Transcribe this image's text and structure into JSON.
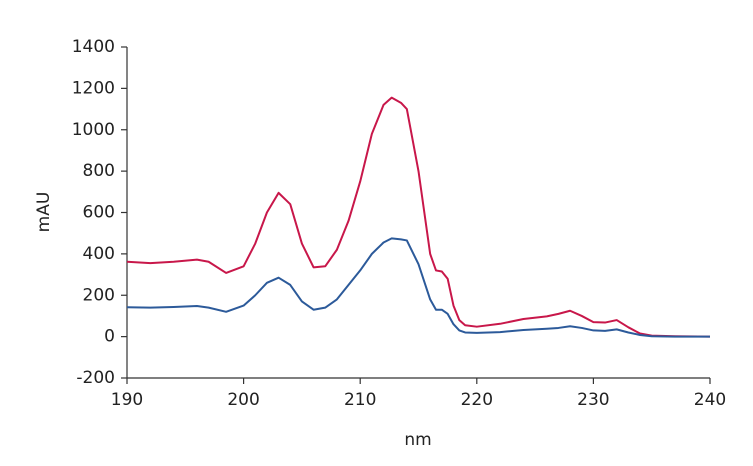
{
  "chart_data": {
    "type": "line",
    "x": [
      190,
      192,
      194,
      196,
      197,
      198.5,
      200,
      201,
      202,
      203,
      204,
      205,
      206,
      207,
      208,
      209,
      210,
      211,
      212,
      212.7,
      213.5,
      214,
      215,
      216,
      216.5,
      217,
      217.5,
      218,
      218.5,
      219,
      220,
      222,
      224,
      226,
      227,
      228,
      229,
      230,
      231,
      232,
      233,
      234,
      235,
      237,
      240
    ],
    "series": [
      {
        "color": "#c8174a",
        "values": [
          362,
          355,
          362,
          372,
          362,
          308,
          340,
          450,
          600,
          695,
          640,
          450,
          335,
          340,
          420,
          560,
          750,
          980,
          1120,
          1155,
          1130,
          1100,
          800,
          400,
          320,
          315,
          280,
          150,
          80,
          55,
          48,
          62,
          85,
          98,
          110,
          125,
          100,
          70,
          68,
          80,
          45,
          15,
          5,
          2,
          0
        ]
      },
      {
        "color": "#2c5a9a",
        "values": [
          142,
          140,
          143,
          148,
          140,
          120,
          150,
          200,
          260,
          285,
          250,
          170,
          130,
          140,
          180,
          250,
          320,
          400,
          455,
          475,
          470,
          465,
          350,
          180,
          130,
          130,
          110,
          60,
          30,
          20,
          18,
          22,
          32,
          38,
          42,
          50,
          42,
          30,
          28,
          35,
          20,
          8,
          2,
          0,
          0
        ]
      }
    ],
    "xlabel": "nm",
    "ylabel": "mAU",
    "xlim": [
      190,
      240
    ],
    "xticks": [
      190,
      200,
      210,
      220,
      230,
      240
    ],
    "ylim": [
      -200,
      1400
    ],
    "yticks": [
      -200,
      0,
      200,
      400,
      600,
      800,
      1000,
      1200,
      1400
    ],
    "grid": false
  }
}
